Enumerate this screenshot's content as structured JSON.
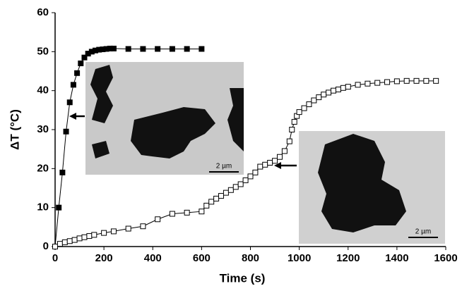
{
  "chart_data": {
    "type": "line",
    "xlabel": "Time (s)",
    "ylabel": "ΔT (°C)",
    "xlim": [
      0,
      1600
    ],
    "xticks": [
      0,
      200,
      400,
      600,
      800,
      1000,
      1200,
      1400,
      1600
    ],
    "ylim": [
      0,
      60
    ],
    "yticks": [
      0,
      10,
      20,
      30,
      40,
      50,
      60
    ],
    "annotations": [
      "2 µm",
      "2 µm"
    ],
    "series": [
      {
        "marker": "filled",
        "color": "#000000",
        "x": [
          0,
          15,
          30,
          45,
          60,
          75,
          90,
          105,
          120,
          135,
          150,
          165,
          180,
          195,
          210,
          225,
          240,
          300,
          360,
          420,
          480,
          540,
          600
        ],
        "values": [
          0,
          10,
          19,
          29.5,
          37,
          41.5,
          44.5,
          47,
          48.5,
          49.5,
          50,
          50.3,
          50.5,
          50.6,
          50.7,
          50.8,
          50.8,
          50.7,
          50.7,
          50.7,
          50.7,
          50.7,
          50.7
        ]
      },
      {
        "marker": "open",
        "color": "#000000",
        "x": [
          0,
          20,
          40,
          60,
          80,
          100,
          120,
          140,
          160,
          200,
          240,
          300,
          360,
          420,
          480,
          540,
          600,
          620,
          640,
          660,
          680,
          700,
          720,
          740,
          760,
          780,
          800,
          820,
          840,
          860,
          880,
          900,
          920,
          940,
          960,
          970,
          980,
          990,
          1000,
          1020,
          1040,
          1060,
          1080,
          1100,
          1120,
          1140,
          1160,
          1180,
          1200,
          1240,
          1280,
          1320,
          1360,
          1400,
          1440,
          1480,
          1520,
          1560
        ],
        "values": [
          0,
          0.7,
          1.1,
          1.4,
          1.7,
          2.1,
          2.4,
          2.7,
          3.0,
          3.5,
          3.9,
          4.6,
          5.2,
          7.0,
          8.4,
          8.7,
          9,
          10.5,
          11.5,
          12.3,
          13,
          13.8,
          14.5,
          15.3,
          16,
          17,
          18,
          19,
          20.5,
          21,
          21.5,
          22,
          23,
          24.5,
          27,
          30,
          32,
          33.5,
          34.5,
          35.5,
          36.5,
          37.5,
          38.3,
          39,
          39.5,
          40,
          40.3,
          40.7,
          41,
          41.5,
          41.8,
          42,
          42.2,
          42.4,
          42.5,
          42.5,
          42.5,
          42.5
        ]
      }
    ]
  }
}
